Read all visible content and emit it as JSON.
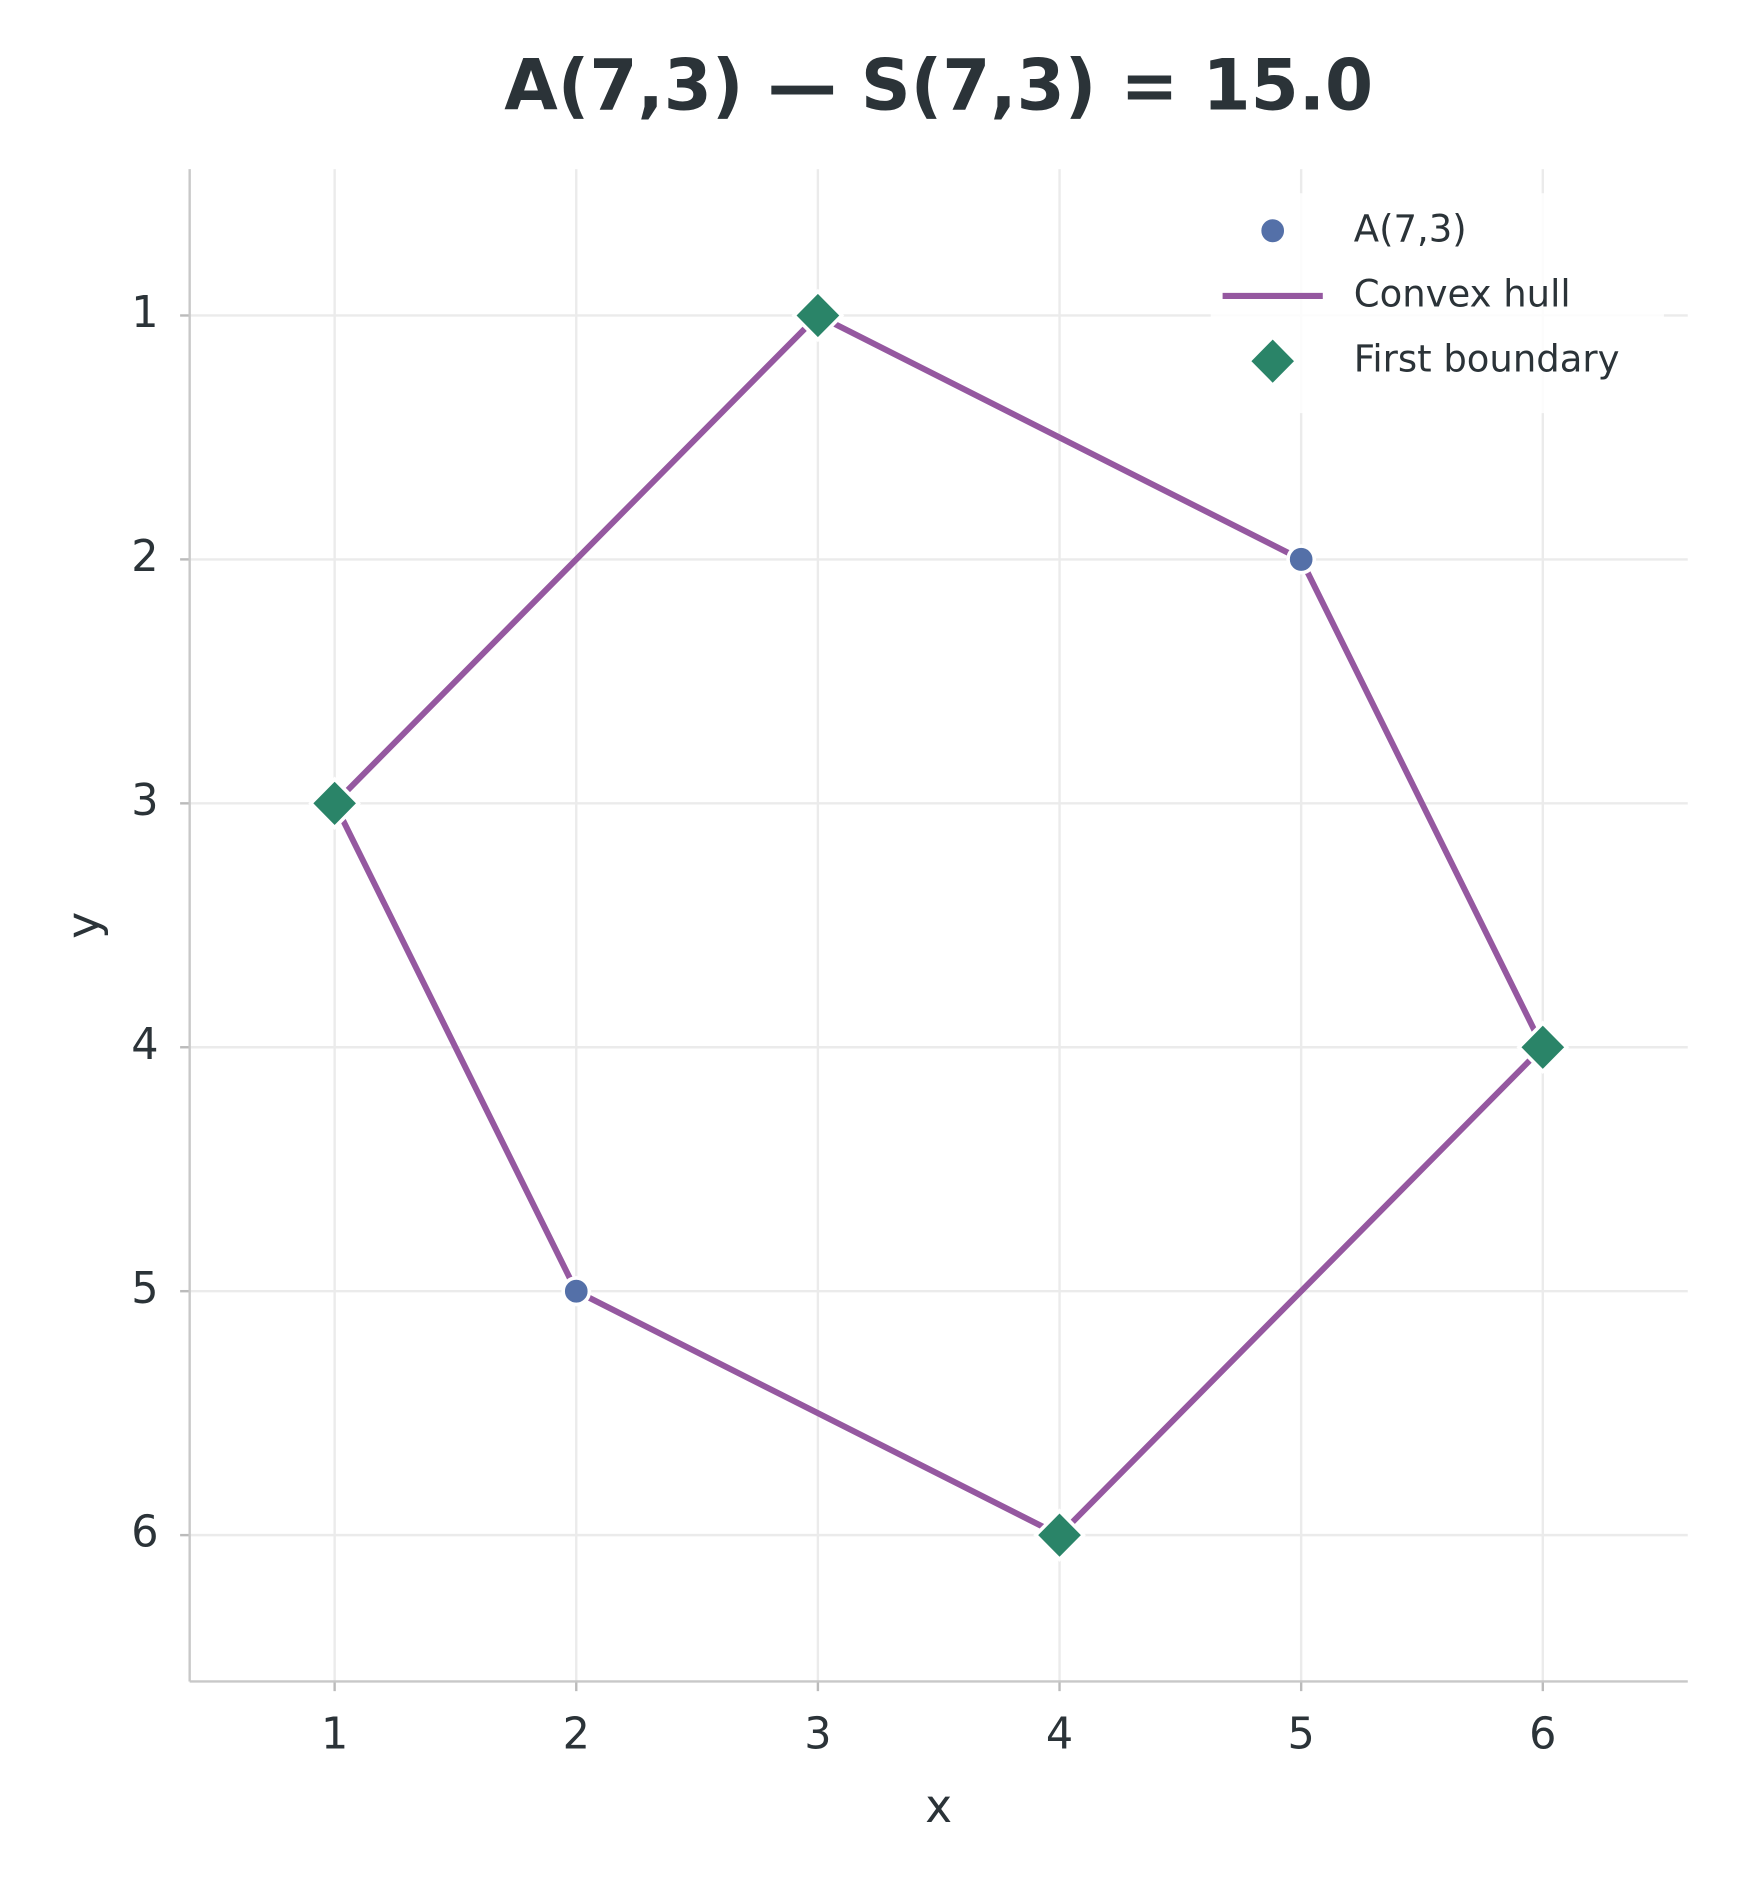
{
  "chart_data": {
    "type": "scatter",
    "title": "A(7,3)  —  S(7,3) = 15.0",
    "x_label": "x",
    "y_label": "y",
    "xlim": [
      0.4,
      6.6
    ],
    "ylim": [
      6.6,
      0.4
    ],
    "xticks": [
      1,
      2,
      3,
      4,
      5,
      6
    ],
    "yticks": [
      1,
      2,
      3,
      4,
      5,
      6
    ],
    "grid": true,
    "legend": "upper right",
    "series": [
      {
        "name": "A(7,3)",
        "kind": "points",
        "marker": "circle",
        "color": "#5470a8",
        "x": [
          5,
          2
        ],
        "values": [
          2,
          5
        ]
      },
      {
        "name": "Convex hull",
        "kind": "line",
        "color": "#9558a0",
        "x": [
          3,
          5,
          6,
          4,
          2,
          1,
          3
        ],
        "values": [
          1,
          2,
          4,
          6,
          5,
          3,
          1
        ]
      },
      {
        "name": "First boundary",
        "kind": "points",
        "marker": "diamond",
        "color": "#2a8468",
        "x": [
          3,
          1,
          6,
          4
        ],
        "values": [
          1,
          3,
          4,
          6
        ]
      }
    ]
  }
}
